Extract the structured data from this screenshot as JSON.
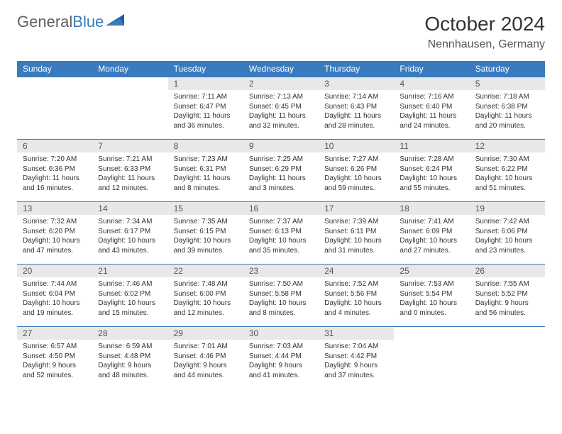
{
  "logo": {
    "text1": "General",
    "text2": "Blue"
  },
  "title": "October 2024",
  "location": "Nennhausen, Germany",
  "colors": {
    "header_bg": "#3a7bbf",
    "header_text": "#ffffff",
    "daynum_bg": "#e8e8e8",
    "border": "#3a7bbf",
    "text": "#333333"
  },
  "day_headers": [
    "Sunday",
    "Monday",
    "Tuesday",
    "Wednesday",
    "Thursday",
    "Friday",
    "Saturday"
  ],
  "weeks": [
    [
      {
        "n": "",
        "sr": "",
        "ss": "",
        "dl1": "",
        "dl2": "",
        "empty": true
      },
      {
        "n": "",
        "sr": "",
        "ss": "",
        "dl1": "",
        "dl2": "",
        "empty": true
      },
      {
        "n": "1",
        "sr": "Sunrise: 7:11 AM",
        "ss": "Sunset: 6:47 PM",
        "dl1": "Daylight: 11 hours",
        "dl2": "and 36 minutes."
      },
      {
        "n": "2",
        "sr": "Sunrise: 7:13 AM",
        "ss": "Sunset: 6:45 PM",
        "dl1": "Daylight: 11 hours",
        "dl2": "and 32 minutes."
      },
      {
        "n": "3",
        "sr": "Sunrise: 7:14 AM",
        "ss": "Sunset: 6:43 PM",
        "dl1": "Daylight: 11 hours",
        "dl2": "and 28 minutes."
      },
      {
        "n": "4",
        "sr": "Sunrise: 7:16 AM",
        "ss": "Sunset: 6:40 PM",
        "dl1": "Daylight: 11 hours",
        "dl2": "and 24 minutes."
      },
      {
        "n": "5",
        "sr": "Sunrise: 7:18 AM",
        "ss": "Sunset: 6:38 PM",
        "dl1": "Daylight: 11 hours",
        "dl2": "and 20 minutes."
      }
    ],
    [
      {
        "n": "6",
        "sr": "Sunrise: 7:20 AM",
        "ss": "Sunset: 6:36 PM",
        "dl1": "Daylight: 11 hours",
        "dl2": "and 16 minutes."
      },
      {
        "n": "7",
        "sr": "Sunrise: 7:21 AM",
        "ss": "Sunset: 6:33 PM",
        "dl1": "Daylight: 11 hours",
        "dl2": "and 12 minutes."
      },
      {
        "n": "8",
        "sr": "Sunrise: 7:23 AM",
        "ss": "Sunset: 6:31 PM",
        "dl1": "Daylight: 11 hours",
        "dl2": "and 8 minutes."
      },
      {
        "n": "9",
        "sr": "Sunrise: 7:25 AM",
        "ss": "Sunset: 6:29 PM",
        "dl1": "Daylight: 11 hours",
        "dl2": "and 3 minutes."
      },
      {
        "n": "10",
        "sr": "Sunrise: 7:27 AM",
        "ss": "Sunset: 6:26 PM",
        "dl1": "Daylight: 10 hours",
        "dl2": "and 59 minutes."
      },
      {
        "n": "11",
        "sr": "Sunrise: 7:28 AM",
        "ss": "Sunset: 6:24 PM",
        "dl1": "Daylight: 10 hours",
        "dl2": "and 55 minutes."
      },
      {
        "n": "12",
        "sr": "Sunrise: 7:30 AM",
        "ss": "Sunset: 6:22 PM",
        "dl1": "Daylight: 10 hours",
        "dl2": "and 51 minutes."
      }
    ],
    [
      {
        "n": "13",
        "sr": "Sunrise: 7:32 AM",
        "ss": "Sunset: 6:20 PM",
        "dl1": "Daylight: 10 hours",
        "dl2": "and 47 minutes."
      },
      {
        "n": "14",
        "sr": "Sunrise: 7:34 AM",
        "ss": "Sunset: 6:17 PM",
        "dl1": "Daylight: 10 hours",
        "dl2": "and 43 minutes."
      },
      {
        "n": "15",
        "sr": "Sunrise: 7:35 AM",
        "ss": "Sunset: 6:15 PM",
        "dl1": "Daylight: 10 hours",
        "dl2": "and 39 minutes."
      },
      {
        "n": "16",
        "sr": "Sunrise: 7:37 AM",
        "ss": "Sunset: 6:13 PM",
        "dl1": "Daylight: 10 hours",
        "dl2": "and 35 minutes."
      },
      {
        "n": "17",
        "sr": "Sunrise: 7:39 AM",
        "ss": "Sunset: 6:11 PM",
        "dl1": "Daylight: 10 hours",
        "dl2": "and 31 minutes."
      },
      {
        "n": "18",
        "sr": "Sunrise: 7:41 AM",
        "ss": "Sunset: 6:09 PM",
        "dl1": "Daylight: 10 hours",
        "dl2": "and 27 minutes."
      },
      {
        "n": "19",
        "sr": "Sunrise: 7:42 AM",
        "ss": "Sunset: 6:06 PM",
        "dl1": "Daylight: 10 hours",
        "dl2": "and 23 minutes."
      }
    ],
    [
      {
        "n": "20",
        "sr": "Sunrise: 7:44 AM",
        "ss": "Sunset: 6:04 PM",
        "dl1": "Daylight: 10 hours",
        "dl2": "and 19 minutes."
      },
      {
        "n": "21",
        "sr": "Sunrise: 7:46 AM",
        "ss": "Sunset: 6:02 PM",
        "dl1": "Daylight: 10 hours",
        "dl2": "and 15 minutes."
      },
      {
        "n": "22",
        "sr": "Sunrise: 7:48 AM",
        "ss": "Sunset: 6:00 PM",
        "dl1": "Daylight: 10 hours",
        "dl2": "and 12 minutes."
      },
      {
        "n": "23",
        "sr": "Sunrise: 7:50 AM",
        "ss": "Sunset: 5:58 PM",
        "dl1": "Daylight: 10 hours",
        "dl2": "and 8 minutes."
      },
      {
        "n": "24",
        "sr": "Sunrise: 7:52 AM",
        "ss": "Sunset: 5:56 PM",
        "dl1": "Daylight: 10 hours",
        "dl2": "and 4 minutes."
      },
      {
        "n": "25",
        "sr": "Sunrise: 7:53 AM",
        "ss": "Sunset: 5:54 PM",
        "dl1": "Daylight: 10 hours",
        "dl2": "and 0 minutes."
      },
      {
        "n": "26",
        "sr": "Sunrise: 7:55 AM",
        "ss": "Sunset: 5:52 PM",
        "dl1": "Daylight: 9 hours",
        "dl2": "and 56 minutes."
      }
    ],
    [
      {
        "n": "27",
        "sr": "Sunrise: 6:57 AM",
        "ss": "Sunset: 4:50 PM",
        "dl1": "Daylight: 9 hours",
        "dl2": "and 52 minutes."
      },
      {
        "n": "28",
        "sr": "Sunrise: 6:59 AM",
        "ss": "Sunset: 4:48 PM",
        "dl1": "Daylight: 9 hours",
        "dl2": "and 48 minutes."
      },
      {
        "n": "29",
        "sr": "Sunrise: 7:01 AM",
        "ss": "Sunset: 4:46 PM",
        "dl1": "Daylight: 9 hours",
        "dl2": "and 44 minutes."
      },
      {
        "n": "30",
        "sr": "Sunrise: 7:03 AM",
        "ss": "Sunset: 4:44 PM",
        "dl1": "Daylight: 9 hours",
        "dl2": "and 41 minutes."
      },
      {
        "n": "31",
        "sr": "Sunrise: 7:04 AM",
        "ss": "Sunset: 4:42 PM",
        "dl1": "Daylight: 9 hours",
        "dl2": "and 37 minutes."
      },
      {
        "n": "",
        "sr": "",
        "ss": "",
        "dl1": "",
        "dl2": "",
        "empty": true
      },
      {
        "n": "",
        "sr": "",
        "ss": "",
        "dl1": "",
        "dl2": "",
        "empty": true
      }
    ]
  ]
}
